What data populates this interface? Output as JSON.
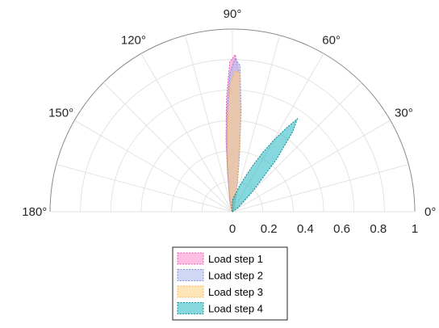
{
  "chart_data": {
    "type": "area",
    "coordinate_system": "polar",
    "theta_range_deg": [
      0,
      180
    ],
    "r_range": [
      0,
      1
    ],
    "grid": true,
    "angle_ticks": [
      {
        "deg": 0,
        "label": "0°"
      },
      {
        "deg": 30,
        "label": "30°"
      },
      {
        "deg": 60,
        "label": "60°"
      },
      {
        "deg": 90,
        "label": "90°"
      },
      {
        "deg": 120,
        "label": "120°"
      },
      {
        "deg": 150,
        "label": "150°"
      },
      {
        "deg": 180,
        "label": "180°"
      }
    ],
    "radial_ticks": [
      {
        "value": 0,
        "label": "0"
      },
      {
        "value": 0.2,
        "label": "0.2"
      },
      {
        "value": 0.4,
        "label": "0.4"
      },
      {
        "value": 0.6,
        "label": "0.6"
      },
      {
        "value": 0.8,
        "label": "0.8"
      },
      {
        "value": 1,
        "label": "1"
      }
    ],
    "legend_position": "bottom",
    "series": [
      {
        "name": "Load step 1",
        "fill_color": "#ff88cc",
        "edge_color": "#e060b0",
        "theta_deg": [
          70,
          75,
          80,
          83,
          85,
          87,
          89,
          91,
          93,
          95,
          97,
          100,
          105,
          110
        ],
        "r": [
          0.02,
          0.05,
          0.15,
          0.3,
          0.5,
          0.75,
          0.86,
          0.82,
          0.62,
          0.4,
          0.22,
          0.1,
          0.05,
          0.02
        ]
      },
      {
        "name": "Load step 2",
        "fill_color": "#a6b8ec",
        "edge_color": "#8a8fd8",
        "theta_deg": [
          70,
          75,
          80,
          83,
          85,
          87,
          89,
          91,
          93,
          95,
          97,
          100,
          105,
          110
        ],
        "r": [
          0.02,
          0.05,
          0.16,
          0.32,
          0.55,
          0.8,
          0.84,
          0.76,
          0.56,
          0.35,
          0.2,
          0.09,
          0.04,
          0.02
        ]
      },
      {
        "name": "Load step 3",
        "fill_color": "#ffd27f",
        "edge_color": "#f0b860",
        "theta_deg": [
          70,
          75,
          80,
          83,
          85,
          87,
          89,
          91,
          93,
          95,
          97,
          100,
          105,
          110
        ],
        "r": [
          0.02,
          0.05,
          0.14,
          0.28,
          0.52,
          0.76,
          0.77,
          0.7,
          0.5,
          0.32,
          0.18,
          0.08,
          0.04,
          0.02
        ]
      },
      {
        "name": "Load step 4",
        "fill_color": "#22b8c2",
        "edge_color": "#10909a",
        "theta_deg": [
          35,
          45,
          50,
          53,
          55,
          57,
          60,
          63,
          66,
          70,
          75,
          80,
          85,
          90,
          95
        ],
        "r": [
          0.04,
          0.16,
          0.38,
          0.55,
          0.62,
          0.55,
          0.45,
          0.36,
          0.28,
          0.2,
          0.14,
          0.1,
          0.08,
          0.06,
          0.03
        ]
      }
    ]
  }
}
